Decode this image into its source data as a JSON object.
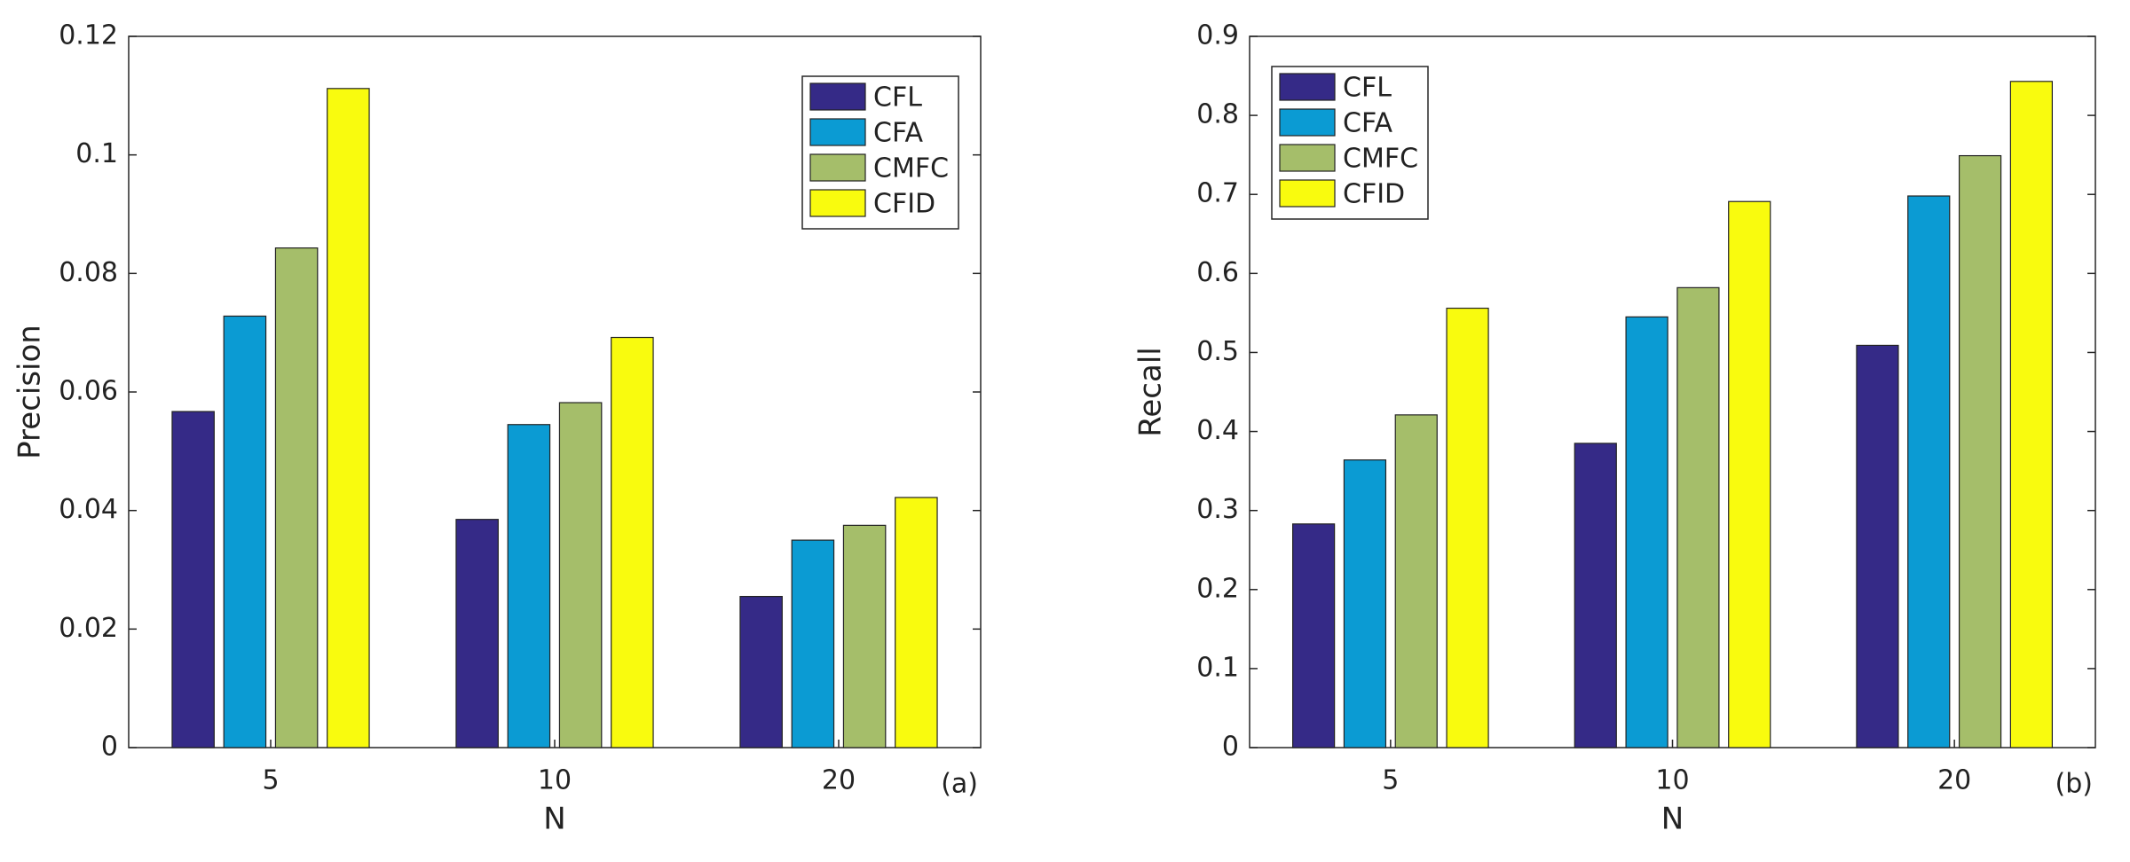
{
  "chart_data": [
    {
      "type": "bar",
      "ylabel": "Precision",
      "xlabel": "N",
      "annotation": "(a)",
      "categories": [
        "5",
        "10",
        "20"
      ],
      "series": [
        {
          "name": "CFL",
          "color": "#352a87",
          "values": [
            0.0567,
            0.0385,
            0.0255
          ]
        },
        {
          "name": "CFA",
          "color": "#0b9bd3",
          "values": [
            0.0728,
            0.0545,
            0.035
          ]
        },
        {
          "name": "CMFC",
          "color": "#a5be6a",
          "values": [
            0.0843,
            0.0582,
            0.0375
          ]
        },
        {
          "name": "CFID",
          "color": "#f9fb0e",
          "values": [
            0.1112,
            0.0692,
            0.0422
          ]
        }
      ],
      "ylim": [
        0,
        0.12
      ],
      "yticks": [
        0,
        0.02,
        0.04,
        0.06,
        0.08,
        0.1,
        0.12
      ],
      "legend": "northeast"
    },
    {
      "type": "bar",
      "ylabel": "Recall",
      "xlabel": "N",
      "annotation": "(b)",
      "categories": [
        "5",
        "10",
        "20"
      ],
      "series": [
        {
          "name": "CFL",
          "color": "#352a87",
          "values": [
            0.283,
            0.385,
            0.509
          ]
        },
        {
          "name": "CFA",
          "color": "#0b9bd3",
          "values": [
            0.364,
            0.545,
            0.698
          ]
        },
        {
          "name": "CMFC",
          "color": "#a5be6a",
          "values": [
            0.421,
            0.582,
            0.749
          ]
        },
        {
          "name": "CFID",
          "color": "#f9fb0e",
          "values": [
            0.556,
            0.691,
            0.843
          ]
        }
      ],
      "ylim": [
        0,
        0.9
      ],
      "yticks": [
        0,
        0.1,
        0.2,
        0.3,
        0.4,
        0.5,
        0.6,
        0.7,
        0.8,
        0.9
      ],
      "legend": "northwest"
    }
  ]
}
